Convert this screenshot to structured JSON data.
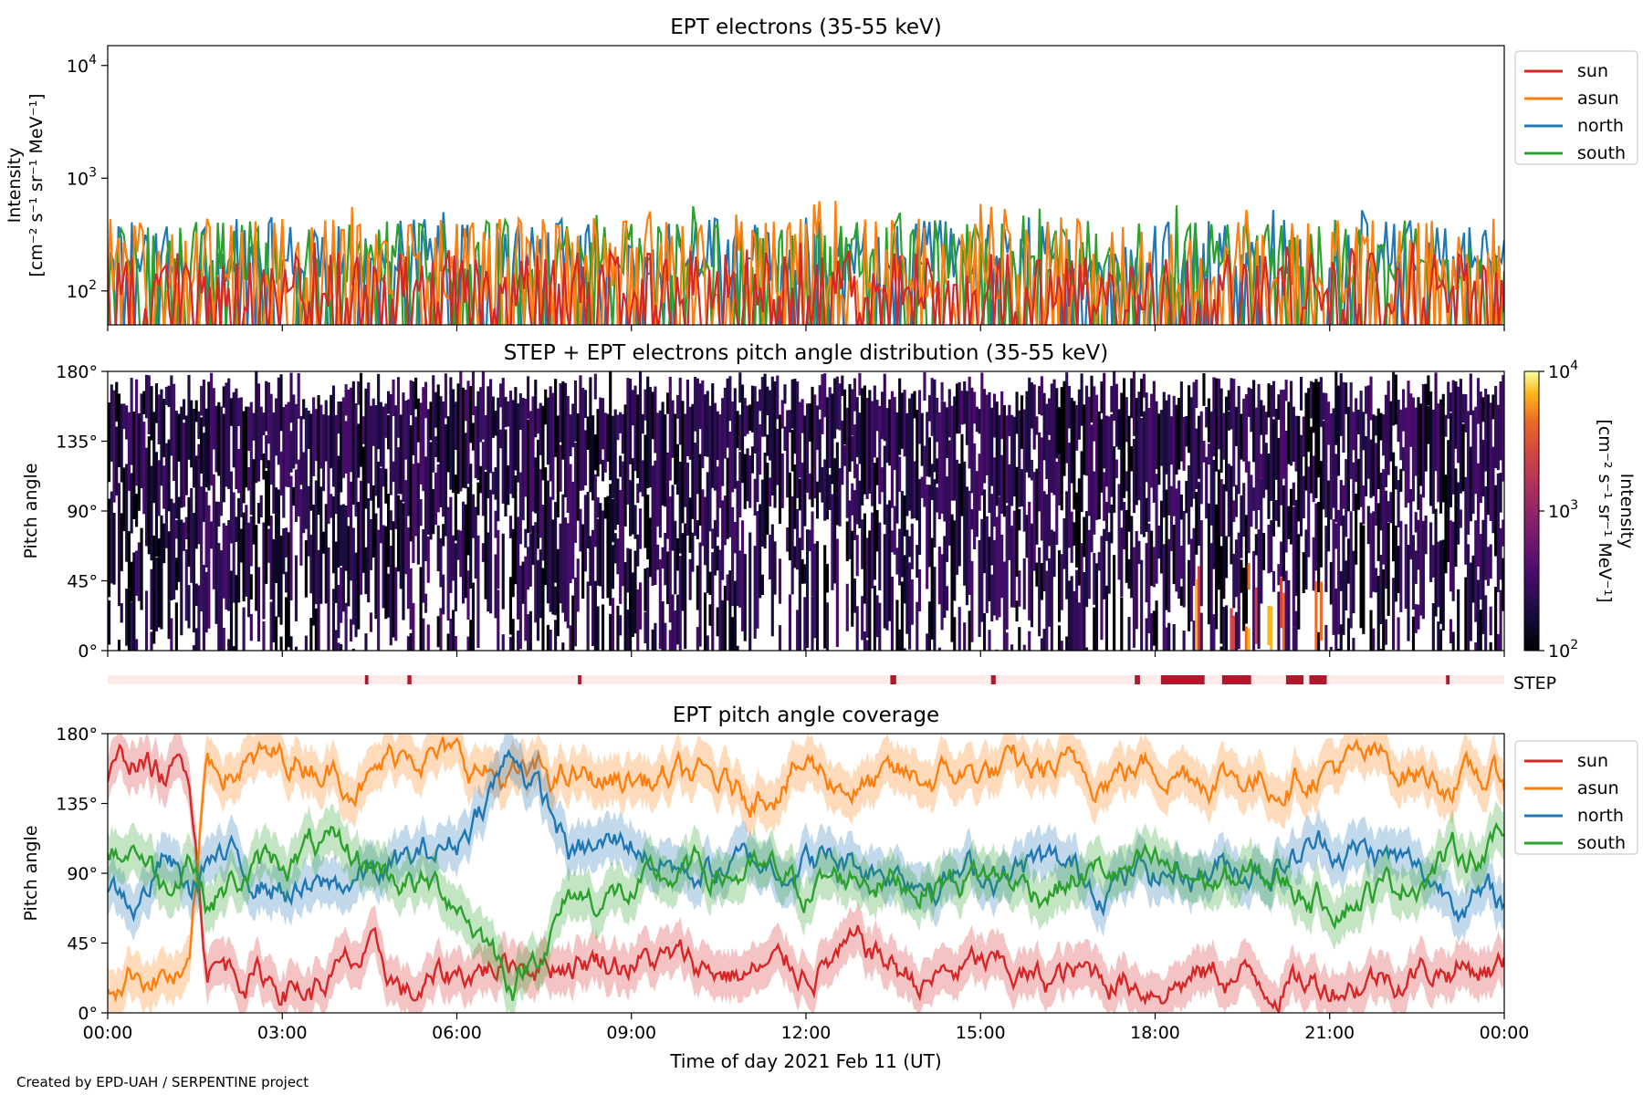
{
  "footer": "Created by EPD-UAH / SERPENTINE project",
  "x_axis": {
    "ticks": [
      "00:00",
      "03:00",
      "06:00",
      "09:00",
      "12:00",
      "15:00",
      "18:00",
      "21:00",
      "00:00"
    ],
    "xlabel": "Time of day 2021 Feb 11 (UT)"
  },
  "colors": {
    "sun": "#d62728",
    "asun": "#ff7f0e",
    "north": "#1f77b4",
    "south": "#2ca02c"
  },
  "chart_data": [
    {
      "type": "line",
      "title": "EPT electrons (35-55 keV)",
      "ylabel": "Intensity",
      "yunit": "[cm⁻² s⁻¹ sr⁻¹ MeV⁻¹]",
      "y_scale": "log",
      "ylim": [
        50,
        15000
      ],
      "y_ticks": [
        {
          "value": 100,
          "base": "10",
          "exp": "2"
        },
        {
          "value": 1000,
          "base": "10",
          "exp": "3"
        },
        {
          "value": 10000,
          "base": "10",
          "exp": "4"
        }
      ],
      "xlim_hours": [
        0,
        24
      ],
      "legend": {
        "position": "outside-right",
        "entries": [
          "sun",
          "asun",
          "north",
          "south"
        ]
      },
      "series": [
        {
          "name": "sun",
          "baseline": 90,
          "peak_range": [
            120,
            300
          ]
        },
        {
          "name": "asun",
          "baseline": 110,
          "peak_range": [
            180,
            650
          ]
        },
        {
          "name": "north",
          "baseline": 170,
          "peak_range": [
            230,
            600
          ]
        },
        {
          "name": "south",
          "baseline": 160,
          "peak_range": [
            220,
            600
          ]
        }
      ]
    },
    {
      "type": "heatmap",
      "title": "STEP + EPT electrons pitch angle distribution (35-55 keV)",
      "ylabel": "Pitch angle",
      "y_ticks": [
        "0°",
        "45°",
        "90°",
        "135°",
        "180°"
      ],
      "ylim": [
        0,
        180
      ],
      "xlim_hours": [
        0,
        24
      ],
      "colorbar": {
        "label": "Intensity",
        "unit": "[cm⁻² s⁻¹ sr⁻¹ MeV⁻¹]",
        "scale": "log",
        "range": [
          100,
          10000
        ],
        "ticks": [
          {
            "value": 100,
            "base": "10",
            "exp": "2"
          },
          {
            "value": 1000,
            "base": "10",
            "exp": "3"
          },
          {
            "value": 10000,
            "base": "10",
            "exp": "4"
          }
        ],
        "colormap": "inferno"
      }
    },
    {
      "type": "bar",
      "label": "STEP",
      "background_color": "#fdecea",
      "marker_color": "#b2182b",
      "intervals_hours": [
        [
          4.42,
          4.48
        ],
        [
          5.15,
          5.22
        ],
        [
          8.08,
          8.14
        ],
        [
          13.45,
          13.55
        ],
        [
          15.18,
          15.26
        ],
        [
          17.65,
          17.74
        ],
        [
          18.1,
          18.85
        ],
        [
          19.15,
          19.65
        ],
        [
          20.25,
          20.55
        ],
        [
          20.65,
          20.95
        ],
        [
          23.0,
          23.06
        ]
      ]
    },
    {
      "type": "line",
      "title": "EPT pitch angle coverage",
      "ylabel": "Pitch angle",
      "y_ticks": [
        "0°",
        "45°",
        "90°",
        "135°",
        "180°"
      ],
      "ylim": [
        0,
        180
      ],
      "xlim_hours": [
        0,
        24
      ],
      "legend": {
        "position": "outside-right",
        "entries": [
          "sun",
          "asun",
          "north",
          "south"
        ]
      },
      "series": [
        {
          "name": "sun",
          "hours": [
            0,
            0.5,
            1,
            1.4,
            1.7,
            2.5,
            3.5,
            4.5,
            5.2,
            6,
            7,
            8,
            9,
            10,
            11,
            12,
            13,
            14,
            15,
            16,
            17,
            18,
            19,
            20,
            21,
            22,
            23,
            24
          ],
          "values": [
            150,
            165,
            150,
            160,
            35,
            25,
            15,
            35,
            10,
            25,
            35,
            35,
            35,
            30,
            25,
            30,
            40,
            20,
            30,
            20,
            25,
            20,
            25,
            20,
            20,
            25,
            30,
            30
          ]
        },
        {
          "name": "asun",
          "hours": [
            0,
            0.5,
            1,
            1.4,
            1.7,
            2.5,
            3.5,
            4.5,
            5.2,
            6,
            7,
            8,
            9,
            10,
            11,
            12,
            13,
            14,
            15,
            16,
            17,
            18,
            19,
            20,
            21,
            22,
            23,
            24
          ],
          "values": [
            20,
            30,
            25,
            20,
            160,
            160,
            165,
            150,
            175,
            160,
            150,
            150,
            150,
            150,
            140,
            160,
            145,
            150,
            155,
            155,
            155,
            160,
            155,
            150,
            160,
            160,
            150,
            150
          ]
        },
        {
          "name": "north",
          "hours": [
            0,
            0.5,
            1,
            1.4,
            1.7,
            2.5,
            3.5,
            4.5,
            5.2,
            6,
            7,
            8,
            9,
            10,
            11,
            12,
            13,
            14,
            15,
            16,
            17,
            18,
            19,
            20,
            21,
            22,
            23,
            24
          ],
          "values": [
            80,
            70,
            100,
            75,
            100,
            90,
            75,
            90,
            95,
            110,
            170,
            100,
            110,
            90,
            95,
            100,
            95,
            90,
            90,
            95,
            85,
            90,
            95,
            95,
            110,
            100,
            80,
            70
          ]
        },
        {
          "name": "south",
          "hours": [
            0,
            0.5,
            1,
            1.4,
            1.7,
            2.5,
            3.5,
            4.5,
            5.2,
            6,
            7,
            8,
            9,
            10,
            11,
            12,
            13,
            14,
            15,
            16,
            17,
            18,
            19,
            20,
            21,
            22,
            23,
            24
          ],
          "values": [
            100,
            110,
            80,
            110,
            75,
            90,
            105,
            95,
            85,
            75,
            20,
            75,
            75,
            90,
            90,
            80,
            90,
            85,
            90,
            80,
            90,
            90,
            85,
            85,
            75,
            80,
            100,
            110
          ]
        }
      ]
    }
  ]
}
